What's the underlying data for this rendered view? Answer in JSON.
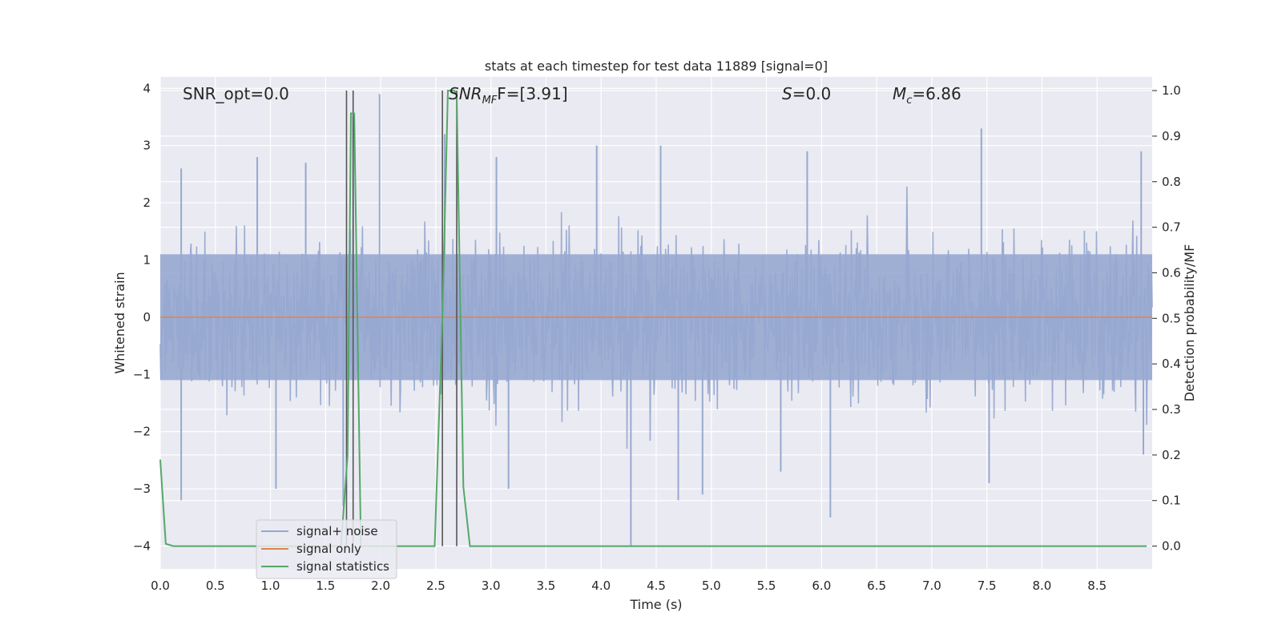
{
  "chart_data": {
    "type": "line",
    "title": "stats at each timestep for test data 11889 [signal=0]",
    "xlabel": "Time (s)",
    "ylabel_left": "Whitened strain",
    "ylabel_right": "Detection probability/MF",
    "xlim": [
      0.0,
      9.0
    ],
    "ylim_left": [
      -4.4,
      4.2
    ],
    "ylim_right": [
      -0.05,
      1.03
    ],
    "x_ticks": [
      "0.0",
      "0.5",
      "1.0",
      "1.5",
      "2.0",
      "2.5",
      "3.0",
      "3.5",
      "4.0",
      "4.5",
      "5.0",
      "5.5",
      "6.0",
      "6.5",
      "7.0",
      "7.5",
      "8.0",
      "8.5"
    ],
    "y_ticks_left": [
      "−4",
      "−3",
      "−2",
      "−1",
      "0",
      "1",
      "2",
      "3",
      "4"
    ],
    "y_ticks_right": [
      "0.0",
      "0.1",
      "0.2",
      "0.3",
      "0.4",
      "0.5",
      "0.6",
      "0.7",
      "0.8",
      "0.9",
      "1.0"
    ],
    "grid": true,
    "legend_position": "lower-left",
    "colors": {
      "signal_noise": "#97a9d0",
      "signal_only": "#dd8452",
      "signal_statistics": "#55a868",
      "markers": "#555555",
      "background": "#eaeaf2"
    },
    "series": [
      {
        "name": "signal+ noise",
        "axis": "left",
        "description_stats": {
          "core_range": [
            -1.6,
            1.6
          ],
          "peak_max": 3.9,
          "peak_min": -4.0
        },
        "spikes_up": [
          [
            0.19,
            2.6
          ],
          [
            0.88,
            2.8
          ],
          [
            1.32,
            2.7
          ],
          [
            1.75,
            3.5
          ],
          [
            1.99,
            3.9
          ],
          [
            2.58,
            3.2
          ],
          [
            3.05,
            2.8
          ],
          [
            3.96,
            3.0
          ],
          [
            4.54,
            3.0
          ],
          [
            5.87,
            2.9
          ],
          [
            7.45,
            3.3
          ],
          [
            8.9,
            2.9
          ]
        ],
        "spikes_down": [
          [
            0.19,
            -3.2
          ],
          [
            1.05,
            -3.0
          ],
          [
            1.66,
            -3.3
          ],
          [
            3.16,
            -3.0
          ],
          [
            4.27,
            -4.0
          ],
          [
            4.7,
            -3.2
          ],
          [
            4.92,
            -3.1
          ],
          [
            5.63,
            -2.7
          ],
          [
            6.08,
            -3.5
          ],
          [
            7.52,
            -2.9
          ],
          [
            8.92,
            -2.4
          ]
        ]
      },
      {
        "name": "signal only",
        "axis": "left",
        "x": [
          0.0,
          9.0
        ],
        "y": [
          0.0,
          0.0
        ]
      },
      {
        "name": "signal statistics",
        "axis": "right",
        "x": [
          0.0,
          0.05,
          0.12,
          1.64,
          1.7,
          1.73,
          1.76,
          1.82,
          1.88,
          2.49,
          2.56,
          2.61,
          2.64,
          2.67,
          2.69,
          2.75,
          2.81,
          2.86,
          8.95
        ],
        "y": [
          0.19,
          0.005,
          0.0,
          0.0,
          0.2,
          0.95,
          0.95,
          0.0,
          0.0,
          0.0,
          0.5,
          1.0,
          1.0,
          1.0,
          0.99,
          0.13,
          0.0,
          0.0,
          0.0
        ]
      }
    ],
    "markers_x": [
      1.69,
      1.75,
      2.56,
      2.69
    ],
    "annotations": [
      {
        "text": "SNR_opt=0.0",
        "x": 0.2
      },
      {
        "text": "SNR",
        "sub": "MF",
        "suffix": "F=[3.91]",
        "x": 2.6
      },
      {
        "text": "S",
        "suffix": "=0.0",
        "x": 5.6
      },
      {
        "text": "M",
        "sub": "c",
        "suffix": "=6.86",
        "x": 6.6
      }
    ]
  }
}
